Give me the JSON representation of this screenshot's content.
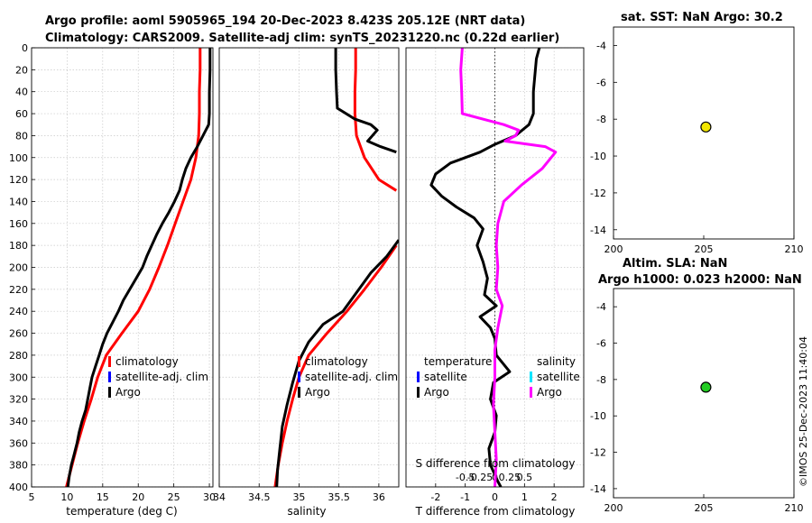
{
  "titles": {
    "line1": "Argo profile: aoml 5905965_194 20-Dec-2023 8.423S 205.12E (NRT data)",
    "line2": "Climatology: CARS2009. Satellite-adj clim: synTS_20231220.nc (0.22d earlier)",
    "sst": "sat. SST: NaN Argo: 30.2",
    "sla1": "Altim. SLA: NaN",
    "sla2": "Argo h1000: 0.023 h2000: NaN"
  },
  "timestamp": "©IMOS 25-Dec-2023 11:40:04",
  "colors": {
    "climatology": "#ff0000",
    "satellite": "#0000ff",
    "argo": "#000000",
    "salinity_argo": "#ff00ff",
    "salinity_satellite": "#00e5ff",
    "marker_sst": "#f2e600",
    "marker_sla": "#22cc22"
  },
  "chart_data": [
    {
      "id": "temperature",
      "type": "line",
      "xlabel": "temperature (deg C)",
      "ylabel": "",
      "xlim": [
        5,
        30.5
      ],
      "ylim": [
        400,
        0
      ],
      "xticks": [
        "5",
        "10",
        "15",
        "20",
        "25",
        "30"
      ],
      "xtick_values": [
        5,
        10,
        15,
        20,
        25,
        30
      ],
      "yticks": [
        "0",
        "20",
        "40",
        "60",
        "80",
        "100",
        "120",
        "140",
        "160",
        "180",
        "200",
        "220",
        "240",
        "260",
        "280",
        "300",
        "320",
        "340",
        "360",
        "380",
        "400"
      ],
      "ytick_values": [
        0,
        20,
        40,
        60,
        80,
        100,
        120,
        140,
        160,
        180,
        200,
        220,
        240,
        260,
        280,
        300,
        320,
        340,
        360,
        380,
        400
      ],
      "legend": [
        "climatology",
        "satellite-adj. clim",
        "Argo"
      ],
      "series": [
        {
          "name": "climatology",
          "color": "#ff0000",
          "points": [
            [
              28.7,
              0
            ],
            [
              28.7,
              20
            ],
            [
              28.6,
              40
            ],
            [
              28.6,
              60
            ],
            [
              28.5,
              80
            ],
            [
              28.1,
              100
            ],
            [
              27.4,
              120
            ],
            [
              26.3,
              140
            ],
            [
              25.2,
              160
            ],
            [
              24.1,
              180
            ],
            [
              22.9,
              200
            ],
            [
              21.6,
              220
            ],
            [
              20.0,
              240
            ],
            [
              17.7,
              260
            ],
            [
              15.5,
              280
            ],
            [
              14.3,
              300
            ],
            [
              13.4,
              320
            ],
            [
              12.4,
              340
            ],
            [
              11.5,
              360
            ],
            [
              10.7,
              380
            ],
            [
              9.9,
              400
            ]
          ]
        },
        {
          "name": "Argo",
          "color": "#000000",
          "points": [
            [
              30.1,
              0
            ],
            [
              30.1,
              20
            ],
            [
              30.0,
              40
            ],
            [
              30.0,
              60
            ],
            [
              29.9,
              70
            ],
            [
              29.1,
              80
            ],
            [
              28.3,
              90
            ],
            [
              27.4,
              100
            ],
            [
              26.7,
              110
            ],
            [
              26.2,
              120
            ],
            [
              25.8,
              130
            ],
            [
              25.1,
              140
            ],
            [
              24.3,
              150
            ],
            [
              23.4,
              160
            ],
            [
              22.6,
              170
            ],
            [
              21.9,
              180
            ],
            [
              21.2,
              190
            ],
            [
              20.6,
              200
            ],
            [
              19.7,
              210
            ],
            [
              18.8,
              220
            ],
            [
              17.9,
              230
            ],
            [
              17.2,
              240
            ],
            [
              16.4,
              250
            ],
            [
              15.6,
              260
            ],
            [
              15.0,
              270
            ],
            [
              14.5,
              280
            ],
            [
              14.0,
              290
            ],
            [
              13.5,
              300
            ],
            [
              13.2,
              310
            ],
            [
              12.9,
              320
            ],
            [
              12.6,
              330
            ],
            [
              12.1,
              340
            ],
            [
              11.7,
              350
            ],
            [
              11.4,
              360
            ],
            [
              11.0,
              370
            ],
            [
              10.6,
              380
            ],
            [
              10.3,
              390
            ],
            [
              10.1,
              400
            ]
          ]
        }
      ]
    },
    {
      "id": "salinity",
      "type": "line",
      "xlabel": "salinity",
      "ylabel": "",
      "xlim": [
        34,
        36.25
      ],
      "ylim": [
        400,
        0
      ],
      "xticks": [
        "34",
        "34.5",
        "35",
        "35.5",
        "36"
      ],
      "xtick_values": [
        34,
        34.5,
        35,
        35.5,
        36
      ],
      "legend": [
        "climatology",
        "satellite-adj. clim",
        "Argo"
      ],
      "series": [
        {
          "name": "climatology",
          "color": "#ff0000",
          "points": [
            [
              35.71,
              0
            ],
            [
              35.71,
              20
            ],
            [
              35.7,
              40
            ],
            [
              35.7,
              60
            ],
            [
              35.72,
              80
            ],
            [
              35.82,
              100
            ],
            [
              36.0,
              120
            ],
            [
              36.22,
              130
            ]
          ]
        },
        {
          "name": "climatology-deep",
          "color": "#ff0000",
          "points": [
            [
              36.22,
              180
            ],
            [
              36.03,
              200
            ],
            [
              35.82,
              220
            ],
            [
              35.6,
              240
            ],
            [
              35.35,
              260
            ],
            [
              35.12,
              280
            ],
            [
              35.0,
              300
            ],
            [
              34.92,
              320
            ],
            [
              34.85,
              340
            ],
            [
              34.79,
              360
            ],
            [
              34.74,
              380
            ],
            [
              34.7,
              400
            ]
          ]
        },
        {
          "name": "Argo",
          "color": "#000000",
          "points": [
            [
              35.46,
              0
            ],
            [
              35.46,
              20
            ],
            [
              35.47,
              40
            ],
            [
              35.48,
              55
            ],
            [
              35.7,
              65
            ],
            [
              35.9,
              70
            ],
            [
              35.98,
              75
            ],
            [
              35.86,
              85
            ],
            [
              36.02,
              90
            ],
            [
              36.22,
              95
            ]
          ]
        },
        {
          "name": "Argo-deep",
          "color": "#000000",
          "points": [
            [
              36.25,
              175
            ],
            [
              36.1,
              190
            ],
            [
              35.9,
              205
            ],
            [
              35.7,
              225
            ],
            [
              35.55,
              240
            ],
            [
              35.3,
              252
            ],
            [
              35.12,
              268
            ],
            [
              35.0,
              285
            ],
            [
              34.92,
              305
            ],
            [
              34.85,
              325
            ],
            [
              34.79,
              345
            ],
            [
              34.76,
              365
            ],
            [
              34.73,
              385
            ],
            [
              34.72,
              400
            ]
          ]
        }
      ]
    },
    {
      "id": "difference",
      "type": "line",
      "xlabel": "T difference from climatology",
      "xlabel_top": "S difference from climatology",
      "xlim": [
        -3,
        3
      ],
      "ylim": [
        400,
        0
      ],
      "xticks": [
        "-2",
        "-1",
        "0",
        "1",
        "2"
      ],
      "xtick_values": [
        -2,
        -1,
        0,
        1,
        2
      ],
      "sticks": [
        "-0.5",
        "-0.25",
        "0",
        "0.25",
        "0.5"
      ],
      "stick_values": [
        -1,
        -0.5,
        0,
        0.5,
        1
      ],
      "legend_temperature": [
        "temperature",
        "satellite",
        "Argo"
      ],
      "legend_salinity": [
        "salinity",
        "satellite",
        "Argo"
      ],
      "series": [
        {
          "name": "T Argo diff",
          "color": "#000000",
          "points": [
            [
              1.5,
              0
            ],
            [
              1.4,
              10
            ],
            [
              1.3,
              40
            ],
            [
              1.3,
              60
            ],
            [
              1.15,
              70
            ],
            [
              0.7,
              80
            ],
            [
              0.0,
              88
            ],
            [
              -0.5,
              95
            ],
            [
              -1.5,
              105
            ],
            [
              -2.0,
              115
            ],
            [
              -2.15,
              125
            ],
            [
              -1.8,
              135
            ],
            [
              -1.3,
              145
            ],
            [
              -0.7,
              155
            ],
            [
              -0.4,
              165
            ],
            [
              -0.6,
              180
            ],
            [
              -0.4,
              195
            ],
            [
              -0.25,
              210
            ],
            [
              -0.35,
              225
            ],
            [
              0.05,
              235
            ],
            [
              -0.5,
              245
            ],
            [
              -0.15,
              255
            ],
            [
              0.0,
              265
            ],
            [
              0.05,
              280
            ],
            [
              0.5,
              295
            ],
            [
              -0.05,
              305
            ],
            [
              -0.15,
              320
            ],
            [
              0.05,
              335
            ],
            [
              0.0,
              350
            ],
            [
              -0.2,
              365
            ],
            [
              -0.15,
              380
            ],
            [
              0.1,
              395
            ],
            [
              0.2,
              400
            ]
          ]
        },
        {
          "name": "S Argo diff",
          "color": "#ff00ff",
          "points": [
            [
              -1.1,
              0
            ],
            [
              -1.15,
              20
            ],
            [
              -1.12,
              40
            ],
            [
              -1.1,
              60
            ],
            [
              0.3,
              70
            ],
            [
              0.8,
              75
            ],
            [
              0.7,
              80
            ],
            [
              0.35,
              85
            ],
            [
              1.7,
              90
            ],
            [
              2.05,
              95
            ],
            [
              1.6,
              110
            ],
            [
              0.9,
              125
            ],
            [
              0.3,
              140
            ],
            [
              0.1,
              160
            ],
            [
              0.05,
              180
            ],
            [
              0.1,
              200
            ],
            [
              0.05,
              220
            ],
            [
              0.25,
              235
            ],
            [
              0.1,
              255
            ],
            [
              0.0,
              275
            ],
            [
              0.0,
              300
            ],
            [
              -0.05,
              325
            ],
            [
              0.0,
              350
            ],
            [
              0.05,
              375
            ],
            [
              0.0,
              400
            ]
          ]
        }
      ]
    },
    {
      "id": "sst_map",
      "type": "scatter",
      "title": "sat. SST: NaN Argo: 30.2",
      "xlim": [
        200,
        210
      ],
      "ylim": [
        -14.5,
        -3
      ],
      "xticks": [
        "200",
        "205",
        "210"
      ],
      "xtick_values": [
        200,
        205,
        210
      ],
      "yticks": [
        "-4",
        "-6",
        "-8",
        "-10",
        "-12",
        "-14"
      ],
      "ytick_values": [
        -4,
        -6,
        -8,
        -10,
        -12,
        -14
      ],
      "points": [
        [
          205.12,
          -8.423
        ]
      ]
    },
    {
      "id": "sla_map",
      "type": "scatter",
      "title": "Altim. SLA: NaN / Argo h1000: 0.023 h2000: NaN",
      "xlim": [
        200,
        210
      ],
      "ylim": [
        -14.5,
        -3
      ],
      "xticks": [
        "200",
        "205",
        "210"
      ],
      "xtick_values": [
        200,
        205,
        210
      ],
      "yticks": [
        "-4",
        "-6",
        "-8",
        "-10",
        "-12",
        "-14"
      ],
      "ytick_values": [
        -4,
        -6,
        -8,
        -10,
        -12,
        -14
      ],
      "points": [
        [
          205.12,
          -8.423
        ]
      ]
    }
  ]
}
